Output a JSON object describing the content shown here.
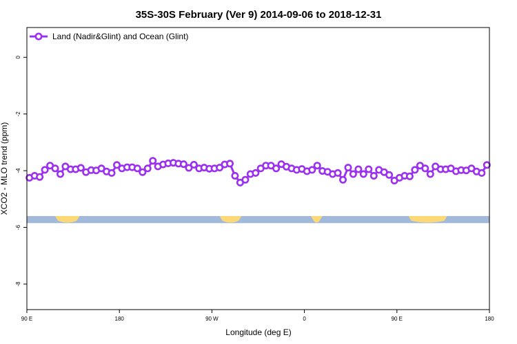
{
  "chart_data": {
    "type": "line",
    "title": "35S-30S February (Ver 9)   2014-09-06 to 2018-12-31",
    "xlabel": "Longitude (deg E)",
    "ylabel": "XCO2 - MLO trend (ppm)",
    "xlim": [
      -10,
      350
    ],
    "ylim": [
      -8.9,
      1.05
    ],
    "x_ticks": [
      {
        "value": -10,
        "label": "90 E"
      },
      {
        "value": 62,
        "label": "180"
      },
      {
        "value": 134,
        "label": "90 W"
      },
      {
        "value": 206,
        "label": "0"
      },
      {
        "value": 278,
        "label": "90 E"
      },
      {
        "value": 350,
        "label": "180"
      }
    ],
    "y_ticks": [
      {
        "value": 0,
        "label": "0"
      },
      {
        "value": -2,
        "label": "-2"
      },
      {
        "value": -4,
        "label": "-4"
      },
      {
        "value": -6,
        "label": "-6"
      },
      {
        "value": -8,
        "label": "-8"
      }
    ],
    "legend": {
      "position": "top-left"
    },
    "colors": {
      "series": "#9b30f0",
      "ocean": "#a3b9d9",
      "land": "#fcd976"
    },
    "series": [
      {
        "name": "Land (Nadir&Glint) and Ocean (Glint)",
        "x": [
          -8,
          -4,
          0,
          4,
          8,
          12,
          16,
          20,
          24,
          28,
          32,
          36,
          40,
          44,
          48,
          52,
          56,
          60,
          64,
          68,
          72,
          76,
          80,
          84,
          88,
          92,
          96,
          100,
          104,
          108,
          112,
          116,
          120,
          124,
          128,
          132,
          136,
          140,
          144,
          148,
          152,
          156,
          160,
          164,
          168,
          172,
          176,
          180,
          184,
          188,
          192,
          196,
          200,
          204,
          208,
          212,
          216,
          220,
          224,
          228,
          232,
          236,
          240,
          244,
          248,
          252,
          256,
          260,
          264,
          268,
          272,
          276,
          280,
          284,
          288,
          292,
          296,
          300,
          304,
          308,
          312,
          316,
          320,
          324,
          328,
          332,
          336,
          340,
          344,
          348
        ],
        "y": [
          -4.25,
          -4.18,
          -4.22,
          -3.97,
          -3.82,
          -3.92,
          -4.12,
          -3.85,
          -3.95,
          -3.95,
          -3.9,
          -4.05,
          -3.98,
          -3.99,
          -3.92,
          -4.03,
          -4.08,
          -3.8,
          -3.92,
          -3.88,
          -3.88,
          -3.92,
          -4.05,
          -3.92,
          -3.65,
          -3.85,
          -3.78,
          -3.74,
          -3.72,
          -3.75,
          -3.77,
          -3.9,
          -3.79,
          -3.92,
          -3.89,
          -3.93,
          -3.92,
          -3.89,
          -3.78,
          -3.75,
          -4.18,
          -4.42,
          -4.32,
          -4.12,
          -4.08,
          -3.92,
          -3.82,
          -3.82,
          -3.92,
          -3.77,
          -3.86,
          -3.92,
          -3.97,
          -3.94,
          -4.02,
          -3.97,
          -3.82,
          -4.01,
          -4.04,
          -4.12,
          -4.08,
          -4.32,
          -3.89,
          -4.12,
          -3.95,
          -4.12,
          -3.95,
          -4.18,
          -3.97,
          -4.05,
          -4.15,
          -4.35,
          -4.25,
          -4.18,
          -4.2,
          -3.97,
          -3.82,
          -3.92,
          -4.12,
          -3.85,
          -3.95,
          -3.95,
          -3.92,
          -4.02,
          -3.98,
          -3.99,
          -3.92,
          -4.03,
          -4.08,
          -3.8
        ]
      }
    ],
    "land_ocean_strip": {
      "y_range": [
        -5.85,
        -5.6
      ],
      "land_segments": [
        [
          12,
          31
        ],
        [
          140,
          157
        ],
        [
          211,
          220
        ],
        [
          287,
          317
        ]
      ]
    }
  }
}
